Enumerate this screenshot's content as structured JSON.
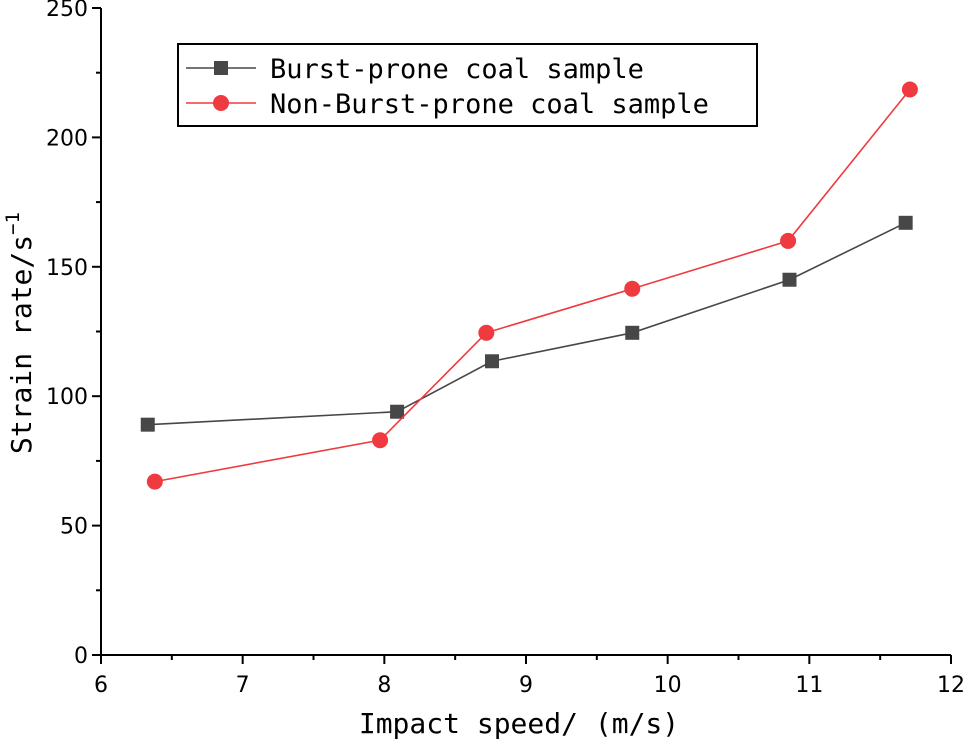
{
  "chart_data": {
    "type": "line",
    "title": "",
    "xlabel": "Impact speed/ (m/s)",
    "ylabel_base": "Strain rate/s",
    "ylabel_sup": "−1",
    "xlim": [
      6,
      12
    ],
    "ylim": [
      0,
      250
    ],
    "xticks": [
      6,
      7,
      8,
      9,
      10,
      11,
      12
    ],
    "yticks": [
      0,
      50,
      100,
      150,
      200,
      250
    ],
    "grid": false,
    "legend_position": "top-left",
    "series": [
      {
        "name": "Burst-prone coal sample",
        "color": "#474747",
        "marker": "square",
        "x": [
          6.33,
          8.09,
          8.76,
          9.75,
          10.86,
          11.68
        ],
        "y": [
          89,
          94,
          113.5,
          124.5,
          145,
          167
        ]
      },
      {
        "name": "Non-Burst-prone coal sample",
        "color": "#ef3a3f",
        "marker": "circle",
        "x": [
          6.38,
          7.97,
          8.72,
          9.75,
          10.85,
          11.71
        ],
        "y": [
          67,
          83,
          124.5,
          141.5,
          160,
          218.5
        ]
      }
    ]
  }
}
